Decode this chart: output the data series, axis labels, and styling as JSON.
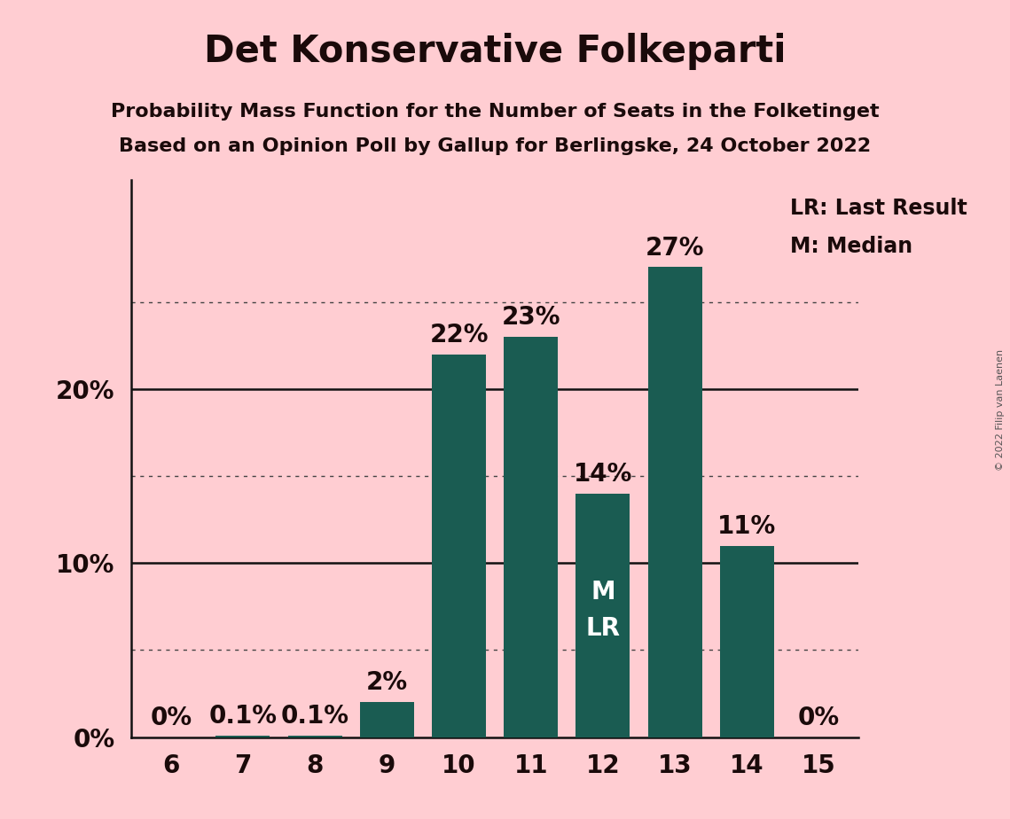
{
  "title": "Det Konservative Folkeparti",
  "subtitle1": "Probability Mass Function for the Number of Seats in the Folketinget",
  "subtitle2": "Based on an Opinion Poll by Gallup for Berlingske, 24 October 2022",
  "copyright": "© 2022 Filip van Laenen",
  "categories": [
    6,
    7,
    8,
    9,
    10,
    11,
    12,
    13,
    14,
    15
  ],
  "values": [
    0.0,
    0.1,
    0.1,
    2.0,
    22.0,
    23.0,
    14.0,
    27.0,
    11.0,
    0.0
  ],
  "labels": [
    "0%",
    "0.1%",
    "0.1%",
    "2%",
    "22%",
    "23%",
    "14%",
    "27%",
    "11%",
    "0%"
  ],
  "bar_color": "#1a5c52",
  "background_color": "#ffcdd2",
  "text_color": "#1a0a0a",
  "label_color_outside": "#1a0a0a",
  "label_color_inside": "#ffffff",
  "median_seat": 12,
  "last_result_seat": 12,
  "legend_lr": "LR: Last Result",
  "legend_m": "M: Median",
  "ylim": [
    0,
    32
  ],
  "dotted_lines": [
    5,
    15,
    25
  ],
  "solid_lines": [
    10,
    20
  ],
  "bar_width": 0.75,
  "title_fontsize": 30,
  "subtitle_fontsize": 16,
  "axis_label_fontsize": 20,
  "bar_label_fontsize": 20,
  "inside_label_fontsize": 20,
  "legend_fontsize": 17,
  "ytick_positions": [
    0,
    10,
    20
  ],
  "ytick_labels": [
    "0%",
    "10%",
    "20%"
  ]
}
